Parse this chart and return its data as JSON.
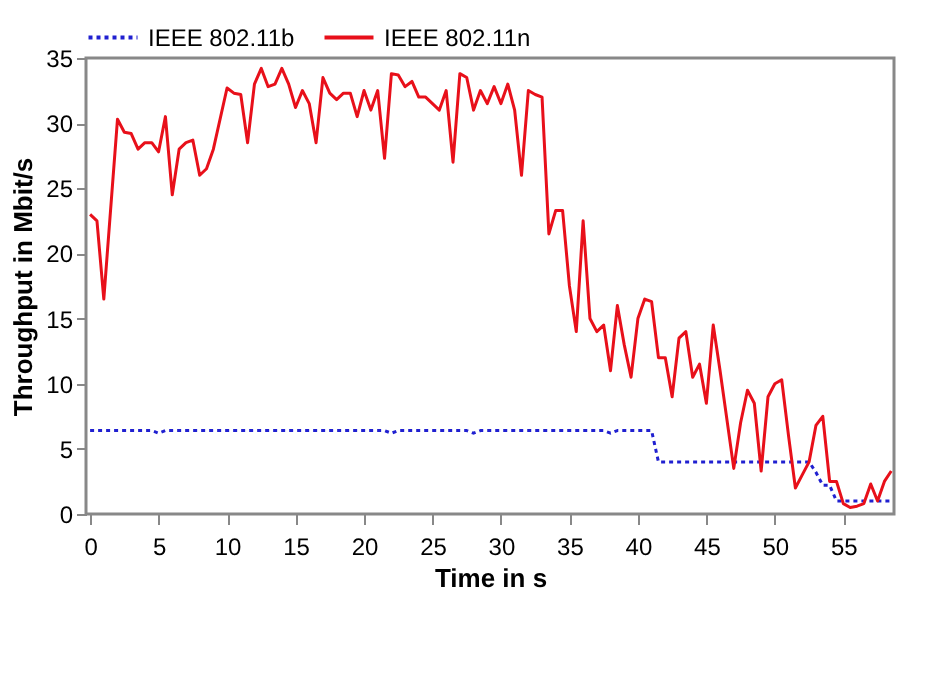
{
  "chart_data": {
    "type": "line",
    "xlabel": "Time in s",
    "ylabel": "Throughput in Mbit/s",
    "xlim": [
      -0.3,
      58.7
    ],
    "xticks": [
      0,
      5,
      10,
      15,
      20,
      25,
      30,
      35,
      40,
      45,
      50,
      55
    ],
    "ylim": [
      0,
      35
    ],
    "yticks": [
      0,
      5,
      10,
      15,
      20,
      25,
      30,
      35
    ],
    "grid": false,
    "legend": "top",
    "marker": "none",
    "series": [
      {
        "name": "IEEE 802.11b",
        "color": "#2020d0",
        "line_style": "dotted",
        "x": [
          0,
          4.5,
          5,
          5.5,
          21.5,
          22,
          22.5,
          27.5,
          28,
          28.5,
          37.5,
          38,
          38.5,
          41,
          41.5,
          52.5,
          53,
          53.5,
          54,
          54.5,
          58.5
        ],
        "values": [
          6.4,
          6.4,
          6.2,
          6.4,
          6.4,
          6.2,
          6.4,
          6.4,
          6.2,
          6.4,
          6.4,
          6.2,
          6.4,
          6.4,
          4,
          4,
          3.2,
          2.2,
          2.2,
          1,
          1
        ]
      },
      {
        "name": "IEEE 802.11n",
        "color": "#e8101a",
        "line_style": "solid",
        "x": [
          0,
          0.5,
          1,
          2,
          2.5,
          3,
          3.5,
          4,
          4.5,
          5,
          5.5,
          6,
          6.5,
          7,
          7.5,
          8,
          8.5,
          9,
          10,
          10.5,
          11,
          11.5,
          12,
          12.5,
          13,
          13.5,
          14,
          14.5,
          15,
          15.5,
          16,
          16.5,
          17,
          17.5,
          18,
          18.5,
          19,
          19.5,
          20,
          20.5,
          21,
          21.5,
          22,
          22.5,
          23,
          23.5,
          24,
          24.5,
          25,
          25.5,
          26,
          26.5,
          27,
          27.5,
          28,
          28.5,
          29,
          29.5,
          30,
          30.5,
          31,
          31.5,
          32,
          32.5,
          33,
          33.5,
          34,
          34.5,
          35,
          35.5,
          36,
          36.5,
          37,
          37.5,
          38,
          38.5,
          39,
          39.5,
          40,
          40.5,
          41,
          41.5,
          42,
          42.5,
          43,
          43.5,
          44,
          44.5,
          45,
          45.5,
          46,
          47,
          47.5,
          48,
          48.5,
          49,
          49.5,
          50,
          50.5,
          51,
          51.5,
          52,
          52.5,
          53,
          53.5,
          54,
          54.5,
          55,
          55.5,
          56,
          56.5,
          57,
          57.5,
          58,
          58.5
        ],
        "values": [
          23,
          22.5,
          16.5,
          30.3,
          29.3,
          29.2,
          28,
          28.5,
          28.5,
          27.8,
          30.5,
          24.5,
          28,
          28.5,
          28.7,
          26,
          26.5,
          28,
          32.7,
          32.3,
          32.2,
          28.5,
          33,
          34.2,
          32.8,
          33,
          34.2,
          33,
          31.2,
          32.5,
          31.5,
          28.5,
          33.5,
          32.3,
          31.8,
          32.3,
          32.3,
          30.5,
          32.5,
          31,
          32.5,
          27.3,
          33.8,
          33.7,
          32.8,
          33.2,
          32,
          32,
          31.5,
          31,
          32.5,
          27,
          33.8,
          33.5,
          31,
          32.5,
          31.5,
          32.8,
          31.5,
          33,
          31,
          26,
          32.5,
          32.2,
          32,
          21.5,
          23.3,
          23.3,
          17.5,
          14,
          22.5,
          15,
          14,
          14.5,
          11,
          16,
          13,
          10.5,
          15,
          16.5,
          16.3,
          12,
          12,
          9,
          13.5,
          14,
          10.5,
          11.5,
          8.5,
          14.5,
          11,
          3.5,
          7,
          9.5,
          8.5,
          3.3,
          9,
          10,
          10.3,
          6,
          2,
          3,
          4,
          6.8,
          7.5,
          2.5,
          2.5,
          0.8,
          0.5,
          0.6,
          0.8,
          2.3,
          1,
          2.5,
          3.3
        ]
      }
    ]
  }
}
